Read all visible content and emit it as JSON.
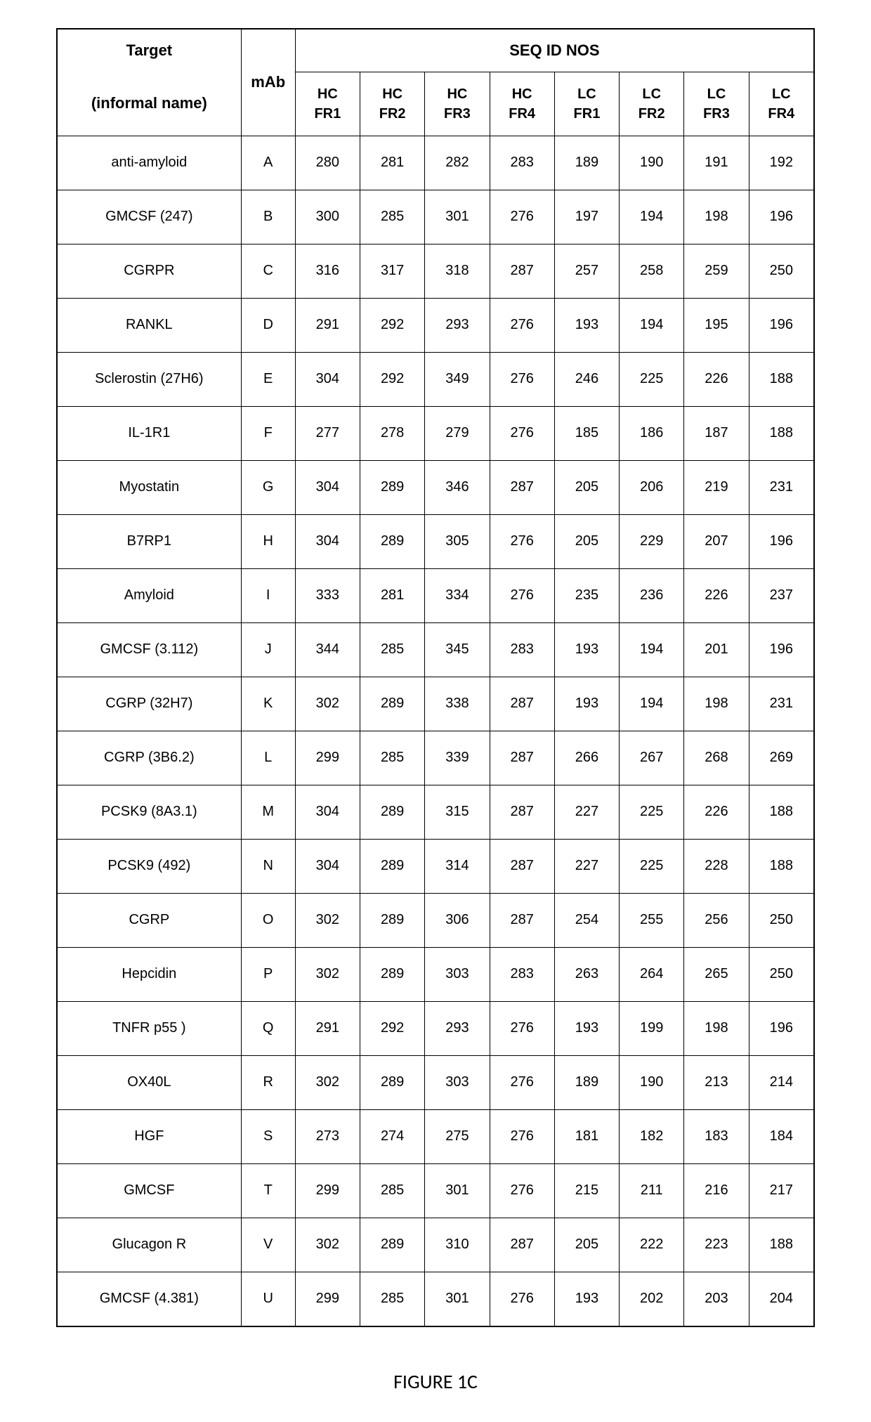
{
  "table": {
    "header": {
      "target_line1": "Target",
      "target_line2": "(informal name)",
      "mab": "mAb",
      "seq_title": "SEQ ID NOS",
      "cols": [
        {
          "l1": "HC",
          "l2": "FR1"
        },
        {
          "l1": "HC",
          "l2": "FR2"
        },
        {
          "l1": "HC",
          "l2": "FR3"
        },
        {
          "l1": "HC",
          "l2": "FR4"
        },
        {
          "l1": "LC",
          "l2": "FR1"
        },
        {
          "l1": "LC",
          "l2": "FR2"
        },
        {
          "l1": "LC",
          "l2": "FR3"
        },
        {
          "l1": "LC",
          "l2": "FR4"
        }
      ]
    },
    "rows": [
      {
        "target": "anti-amyloid",
        "mab": "A",
        "v": [
          "280",
          "281",
          "282",
          "283",
          "189",
          "190",
          "191",
          "192"
        ]
      },
      {
        "target": "GMCSF (247)",
        "mab": "B",
        "v": [
          "300",
          "285",
          "301",
          "276",
          "197",
          "194",
          "198",
          "196"
        ]
      },
      {
        "target": "CGRPR",
        "mab": "C",
        "v": [
          "316",
          "317",
          "318",
          "287",
          "257",
          "258",
          "259",
          "250"
        ]
      },
      {
        "target": "RANKL",
        "mab": "D",
        "v": [
          "291",
          "292",
          "293",
          "276",
          "193",
          "194",
          "195",
          "196"
        ]
      },
      {
        "target": "Sclerostin (27H6)",
        "mab": "E",
        "v": [
          "304",
          "292",
          "349",
          "276",
          "246",
          "225",
          "226",
          "188"
        ]
      },
      {
        "target": "IL-1R1",
        "mab": "F",
        "v": [
          "277",
          "278",
          "279",
          "276",
          "185",
          "186",
          "187",
          "188"
        ]
      },
      {
        "target": "Myostatin",
        "mab": "G",
        "v": [
          "304",
          "289",
          "346",
          "287",
          "205",
          "206",
          "219",
          "231"
        ]
      },
      {
        "target": "B7RP1",
        "mab": "H",
        "v": [
          "304",
          "289",
          "305",
          "276",
          "205",
          "229",
          "207",
          "196"
        ]
      },
      {
        "target": "Amyloid",
        "mab": "I",
        "v": [
          "333",
          "281",
          "334",
          "276",
          "235",
          "236",
          "226",
          "237"
        ]
      },
      {
        "target": "GMCSF (3.112)",
        "mab": "J",
        "v": [
          "344",
          "285",
          "345",
          "283",
          "193",
          "194",
          "201",
          "196"
        ]
      },
      {
        "target": "CGRP (32H7)",
        "mab": "K",
        "v": [
          "302",
          "289",
          "338",
          "287",
          "193",
          "194",
          "198",
          "231"
        ]
      },
      {
        "target": "CGRP (3B6.2)",
        "mab": "L",
        "v": [
          "299",
          "285",
          "339",
          "287",
          "266",
          "267",
          "268",
          "269"
        ]
      },
      {
        "target": "PCSK9 (8A3.1)",
        "mab": "M",
        "v": [
          "304",
          "289",
          "315",
          "287",
          "227",
          "225",
          "226",
          "188"
        ]
      },
      {
        "target": "PCSK9 (492)",
        "mab": "N",
        "v": [
          "304",
          "289",
          "314",
          "287",
          "227",
          "225",
          "228",
          "188"
        ]
      },
      {
        "target": "CGRP",
        "mab": "O",
        "v": [
          "302",
          "289",
          "306",
          "287",
          "254",
          "255",
          "256",
          "250"
        ]
      },
      {
        "target": "Hepcidin",
        "mab": "P",
        "v": [
          "302",
          "289",
          "303",
          "283",
          "263",
          "264",
          "265",
          "250"
        ]
      },
      {
        "target": "TNFR p55 )",
        "mab": "Q",
        "v": [
          "291",
          "292",
          "293",
          "276",
          "193",
          "199",
          "198",
          "196"
        ]
      },
      {
        "target": "OX40L",
        "mab": "R",
        "v": [
          "302",
          "289",
          "303",
          "276",
          "189",
          "190",
          "213",
          "214"
        ]
      },
      {
        "target": "HGF",
        "mab": "S",
        "v": [
          "273",
          "274",
          "275",
          "276",
          "181",
          "182",
          "183",
          "184"
        ]
      },
      {
        "target": "GMCSF",
        "mab": "T",
        "v": [
          "299",
          "285",
          "301",
          "276",
          "215",
          "211",
          "216",
          "217"
        ]
      },
      {
        "target": "Glucagon R",
        "mab": "V",
        "v": [
          "302",
          "289",
          "310",
          "287",
          "205",
          "222",
          "223",
          "188"
        ]
      },
      {
        "target": "GMCSF (4.381)",
        "mab": "U",
        "v": [
          "299",
          "285",
          "301",
          "276",
          "193",
          "202",
          "203",
          "204"
        ]
      }
    ]
  },
  "caption": "FIGURE 1C"
}
